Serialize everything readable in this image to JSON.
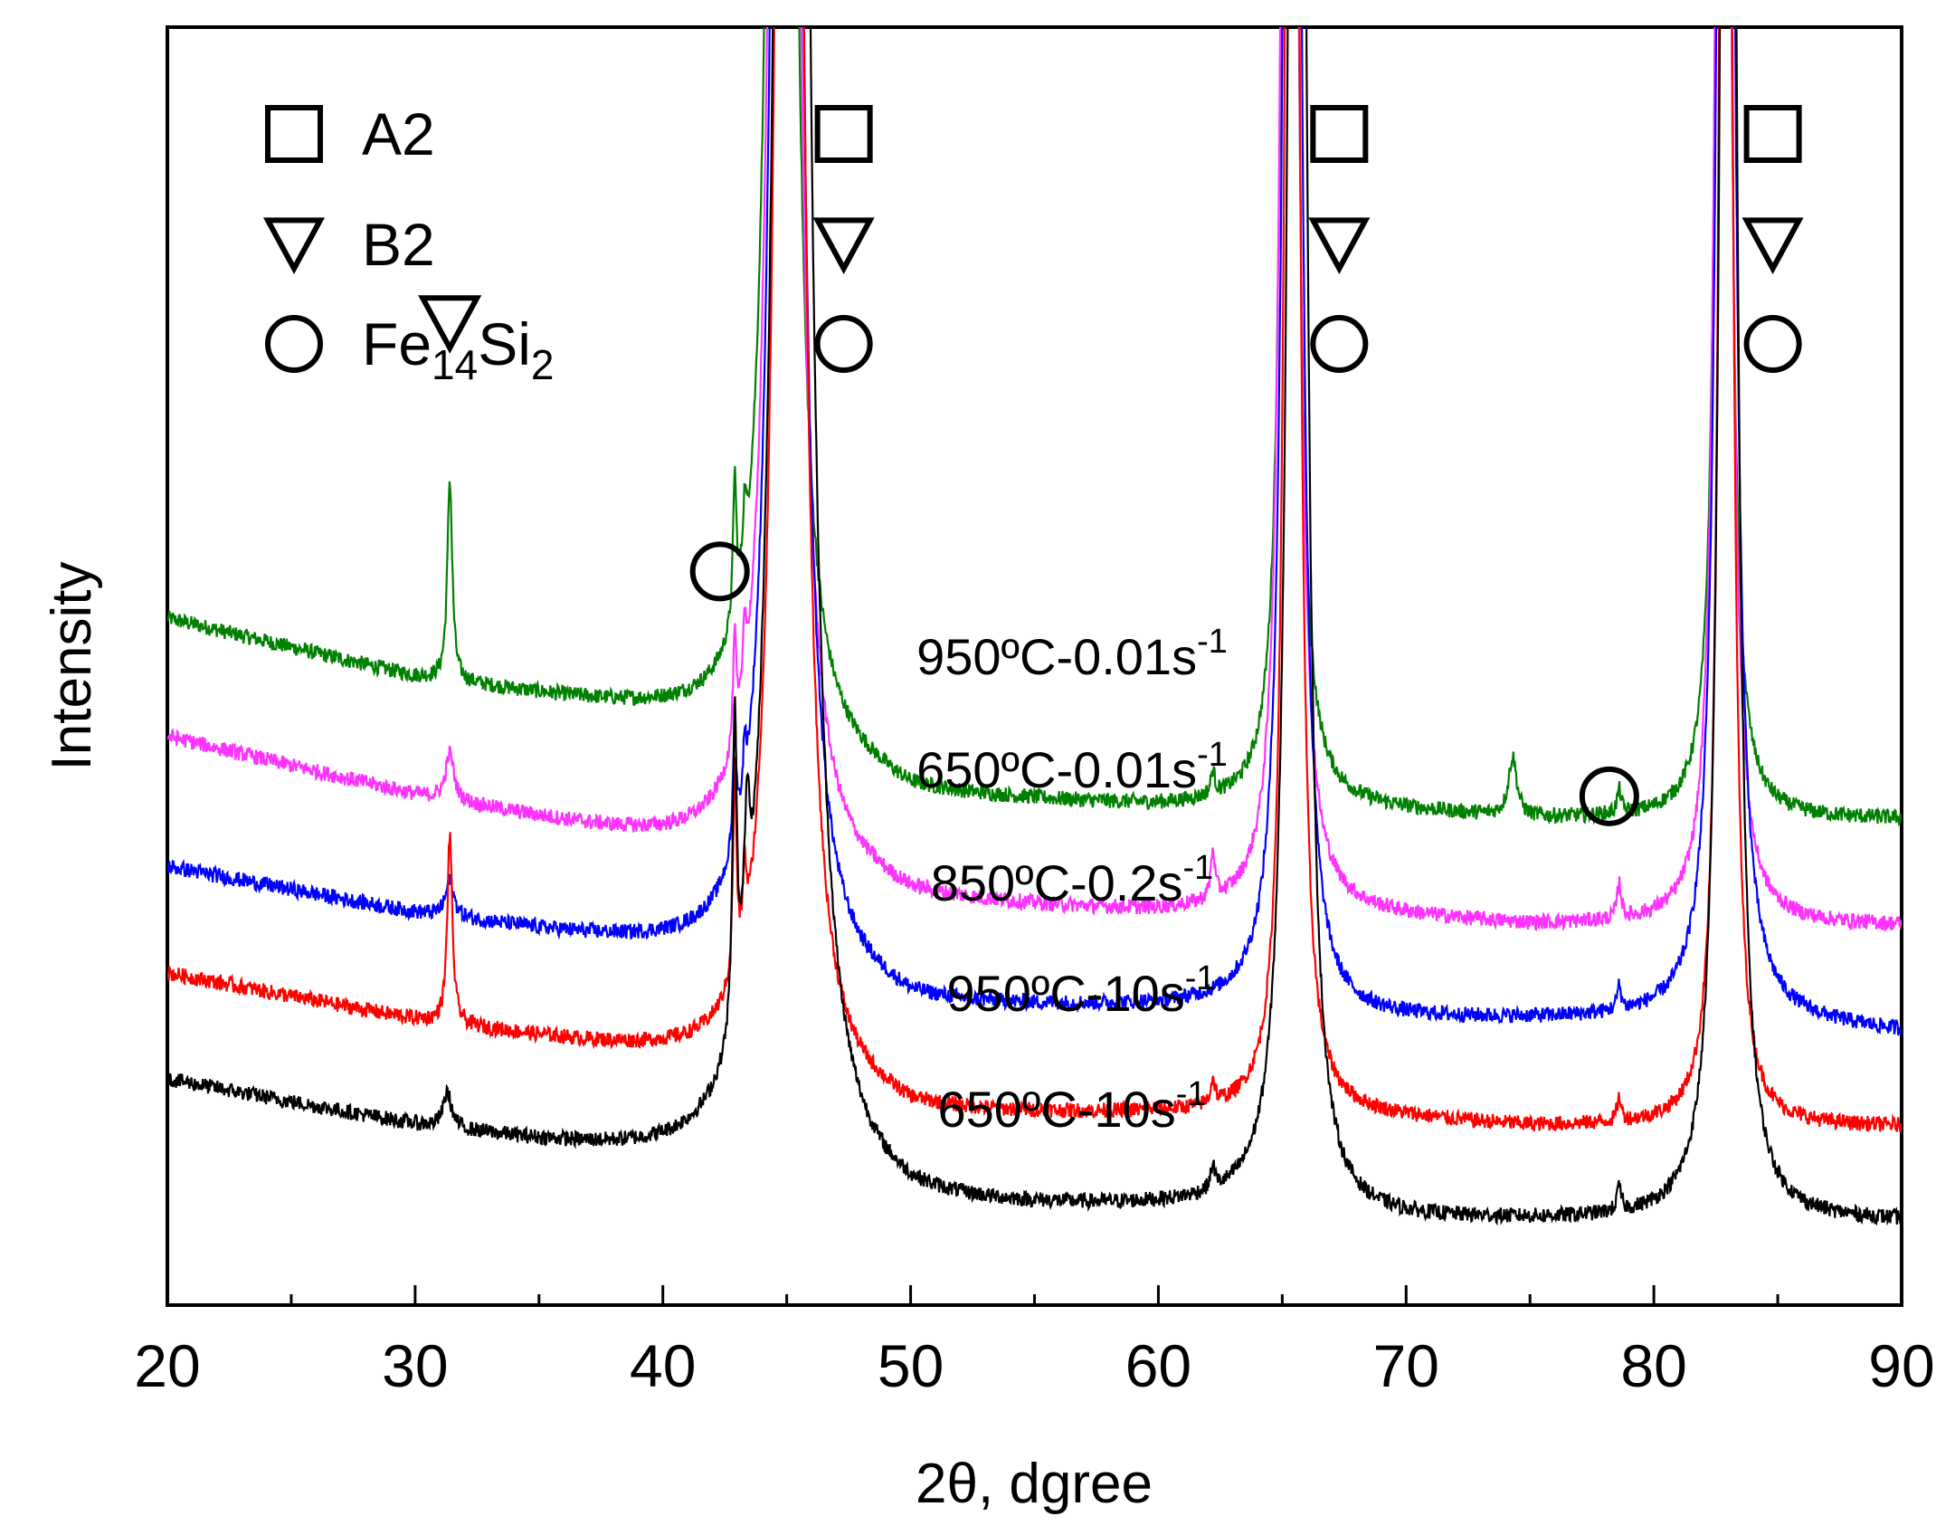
{
  "chart_data": {
    "type": "line",
    "title": "",
    "xlabel": "2θ, dgree",
    "ylabel": "Intensity",
    "xlim": [
      20,
      90
    ],
    "xticks": [
      20,
      30,
      40,
      50,
      60,
      70,
      80,
      90
    ],
    "minor_xticks": [
      25,
      35,
      45,
      55,
      65,
      75,
      85
    ],
    "grid": false,
    "y_units": "arbitrary intensity (curves vertically offset for clarity)",
    "legend": {
      "placement": "top-left",
      "entries": [
        {
          "symbol": "square",
          "label": "A2"
        },
        {
          "symbol": "triangle-down",
          "label": "B2"
        },
        {
          "symbol": "circle",
          "label": "Fe",
          "subscript_parts": [
            "14",
            "Si",
            "2"
          ],
          "full_text": "Fe14Si2"
        }
      ]
    },
    "peak_marker_groups": [
      {
        "x": 47.3,
        "symbols": [
          "square",
          "triangle-down",
          "circle"
        ]
      },
      {
        "x": 67.3,
        "symbols": [
          "square",
          "triangle-down",
          "circle"
        ]
      },
      {
        "x": 84.8,
        "symbols": [
          "square",
          "triangle-down",
          "circle"
        ]
      }
    ],
    "single_markers": [
      {
        "x": 31.4,
        "level": 0.83,
        "symbol": "triangle-down"
      },
      {
        "x": 42.3,
        "level": 0.62,
        "symbol": "circle"
      },
      {
        "x": 78.2,
        "level": 0.43,
        "symbol": "circle"
      }
    ],
    "series": [
      {
        "name": "950ºC-0.01s-1",
        "label_main": "950ºC-0.01s",
        "label_sup": "-1",
        "color": "#008000",
        "baseline": {
          "x": [
            20,
            30,
            40,
            43,
            50,
            60,
            64,
            67,
            75,
            82,
            84,
            90
          ],
          "y": [
            0.58,
            0.53,
            0.5,
            0.49,
            0.43,
            0.42,
            0.42,
            0.42,
            0.41,
            0.41,
            0.41,
            0.41
          ]
        },
        "peaks": [
          {
            "x": 31.4,
            "height": 0.17,
            "width": 0.12
          },
          {
            "x": 42.9,
            "height": 0.12,
            "width": 0.08
          },
          {
            "x": 43.3,
            "height": 0.05,
            "width": 0.08
          },
          {
            "x": 44.8,
            "height": 4.5,
            "width": 0.28
          },
          {
            "x": 62.2,
            "height": 0.02,
            "width": 0.1
          },
          {
            "x": 65.3,
            "height": 3.5,
            "width": 0.18
          },
          {
            "x": 74.3,
            "height": 0.05,
            "width": 0.2
          },
          {
            "x": 78.6,
            "height": 0.02,
            "width": 0.1
          },
          {
            "x": 82.8,
            "height": 3.0,
            "width": 0.18
          }
        ]
      },
      {
        "name": "650ºC-0.01s-1",
        "label_main": "650ºC-0.01s",
        "label_sup": "-1",
        "color": "#ff33ff",
        "baseline": {
          "x": [
            20,
            30,
            40,
            43,
            50,
            60,
            64,
            67,
            75,
            82,
            84,
            90
          ],
          "y": [
            0.48,
            0.43,
            0.39,
            0.38,
            0.34,
            0.33,
            0.33,
            0.33,
            0.32,
            0.32,
            0.32,
            0.32
          ]
        },
        "peaks": [
          {
            "x": 31.4,
            "height": 0.04,
            "width": 0.2
          },
          {
            "x": 42.9,
            "height": 0.09,
            "width": 0.08
          },
          {
            "x": 43.3,
            "height": 0.06,
            "width": 0.08
          },
          {
            "x": 44.9,
            "height": 4.5,
            "width": 0.3
          },
          {
            "x": 62.2,
            "height": 0.04,
            "width": 0.1
          },
          {
            "x": 65.3,
            "height": 3.5,
            "width": 0.2
          },
          {
            "x": 78.6,
            "height": 0.03,
            "width": 0.1
          },
          {
            "x": 82.8,
            "height": 3.0,
            "width": 0.2
          }
        ]
      },
      {
        "name": "850ºC-0.2s-1",
        "label_main": "850ºC-0.2s",
        "label_sup": "-1",
        "color": "#0000ff",
        "baseline": {
          "x": [
            20,
            30,
            40,
            43,
            50,
            60,
            64,
            67,
            75,
            82,
            84,
            90
          ],
          "y": [
            0.37,
            0.33,
            0.3,
            0.29,
            0.25,
            0.25,
            0.25,
            0.24,
            0.24,
            0.24,
            0.24,
            0.23
          ]
        },
        "peaks": [
          {
            "x": 31.4,
            "height": 0.03,
            "width": 0.2
          },
          {
            "x": 42.9,
            "height": 0.1,
            "width": 0.08
          },
          {
            "x": 43.3,
            "height": 0.04,
            "width": 0.08
          },
          {
            "x": 45.0,
            "height": 4.5,
            "width": 0.32
          },
          {
            "x": 65.4,
            "height": 3.5,
            "width": 0.22
          },
          {
            "x": 78.6,
            "height": 0.02,
            "width": 0.1
          },
          {
            "x": 82.9,
            "height": 3.0,
            "width": 0.24
          }
        ]
      },
      {
        "name": "950ºC-10s-1",
        "label_main": "950ºC-10s",
        "label_sup": "-1",
        "color": "#ff0000",
        "baseline": {
          "x": [
            20,
            30,
            40,
            43,
            50,
            60,
            64,
            67,
            75,
            82,
            84,
            90
          ],
          "y": [
            0.28,
            0.24,
            0.21,
            0.2,
            0.16,
            0.16,
            0.16,
            0.16,
            0.15,
            0.15,
            0.15,
            0.15
          ]
        },
        "peaks": [
          {
            "x": 31.4,
            "height": 0.16,
            "width": 0.12
          },
          {
            "x": 42.9,
            "height": 0.18,
            "width": 0.08
          },
          {
            "x": 43.3,
            "height": 0.06,
            "width": 0.08
          },
          {
            "x": 45.1,
            "height": 4.5,
            "width": 0.3
          },
          {
            "x": 62.2,
            "height": 0.02,
            "width": 0.1
          },
          {
            "x": 65.4,
            "height": 3.5,
            "width": 0.18
          },
          {
            "x": 78.6,
            "height": 0.02,
            "width": 0.1
          },
          {
            "x": 82.9,
            "height": 3.0,
            "width": 0.18
          }
        ]
      },
      {
        "name": "650ºC-10s-1",
        "label_main": "650ºC-10s",
        "label_sup": "-1",
        "color": "#000000",
        "baseline": {
          "x": [
            20,
            30,
            40,
            43,
            50,
            60,
            64,
            67,
            75,
            82,
            84,
            90
          ],
          "y": [
            0.19,
            0.15,
            0.12,
            0.11,
            0.08,
            0.08,
            0.08,
            0.07,
            0.07,
            0.07,
            0.07,
            0.07
          ]
        },
        "peaks": [
          {
            "x": 31.3,
            "height": 0.03,
            "width": 0.2
          },
          {
            "x": 42.9,
            "height": 0.26,
            "width": 0.1
          },
          {
            "x": 43.4,
            "height": 0.12,
            "width": 0.14
          },
          {
            "x": 45.2,
            "height": 4.5,
            "width": 0.4
          },
          {
            "x": 62.2,
            "height": 0.02,
            "width": 0.1
          },
          {
            "x": 65.6,
            "height": 3.5,
            "width": 0.24
          },
          {
            "x": 78.6,
            "height": 0.02,
            "width": 0.1
          },
          {
            "x": 83.0,
            "height": 3.0,
            "width": 0.24
          }
        ]
      }
    ]
  }
}
